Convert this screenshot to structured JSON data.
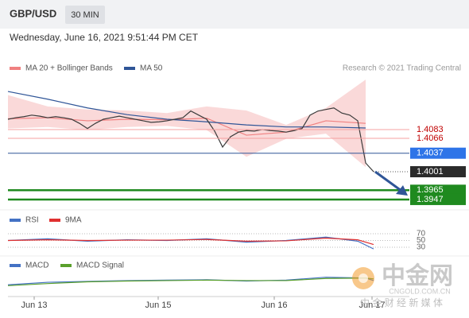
{
  "header": {
    "symbol": "GBP/USD",
    "interval": "30 MIN",
    "datetime": "Wednesday, June 16, 2021 9:51:44 PM CET"
  },
  "watermark": {
    "brand": "中金网",
    "domain": "CNGOLD.COM.CN",
    "tagline": "中 金 财 经 新 媒 体"
  },
  "chart_data": [
    {
      "type": "line",
      "credit": "Research © 2021 Trading Central",
      "xlim": [
        0,
        50
      ],
      "ylim": [
        1.3933,
        1.4188
      ],
      "xticks": [
        {
          "value": 3.3,
          "label": "Jun 13"
        },
        {
          "value": 18.9,
          "label": "Jun 15"
        },
        {
          "value": 33.5,
          "label": "Jun 16"
        },
        {
          "value": 45.8,
          "label": "Jun 17"
        }
      ],
      "series": [
        {
          "name": "MA 20 + Bollinger Bands",
          "color": "#f08080",
          "x": [
            0,
            5,
            10,
            15,
            20,
            25,
            30,
            35,
            40,
            45
          ],
          "values": [
            1.4104,
            1.4106,
            1.41,
            1.4103,
            1.4102,
            1.4105,
            1.4072,
            1.4078,
            1.41,
            1.4095
          ],
          "upper": [
            1.415,
            1.4128,
            1.4122,
            1.412,
            1.4115,
            1.4128,
            1.412,
            1.4092,
            1.4125,
            1.418
          ],
          "lower": [
            1.4085,
            1.4088,
            1.4082,
            1.4088,
            1.409,
            1.4082,
            1.403,
            1.4065,
            1.4075,
            1.401
          ]
        },
        {
          "name": "MA 50",
          "color": "#2f5597",
          "x": [
            0,
            5,
            10,
            15,
            20,
            25,
            30,
            35,
            40,
            45
          ],
          "values": [
            1.4157,
            1.4142,
            1.4125,
            1.4112,
            1.4103,
            1.4098,
            1.4092,
            1.4088,
            1.4088,
            1.4086
          ]
        },
        {
          "color": "#3a3a3a",
          "x": [
            0,
            1,
            2,
            3,
            4,
            5,
            6,
            7,
            8,
            9,
            10,
            11,
            12,
            13,
            14,
            15,
            16,
            17,
            18,
            19,
            20,
            21,
            22,
            23,
            24,
            25,
            26,
            27,
            28,
            29,
            30,
            31,
            32,
            33,
            34,
            35,
            36,
            37,
            38,
            39,
            40,
            41,
            42,
            43,
            44,
            45,
            46
          ],
          "values": [
            1.4103,
            1.4106,
            1.4108,
            1.4111,
            1.4109,
            1.4106,
            1.4108,
            1.4106,
            1.4103,
            1.4095,
            1.4085,
            1.4095,
            1.4103,
            1.4106,
            1.4109,
            1.4106,
            1.4103,
            1.41,
            1.4097,
            1.4098,
            1.41,
            1.4103,
            1.4106,
            1.4119,
            1.4111,
            1.4103,
            1.408,
            1.4049,
            1.4069,
            1.4078,
            1.4081,
            1.408,
            1.4083,
            1.4081,
            1.408,
            1.4078,
            1.4081,
            1.4085,
            1.4111,
            1.4119,
            1.4122,
            1.4125,
            1.4115,
            1.4111,
            1.41,
            1.4018,
            1.4001
          ]
        }
      ],
      "levels": [
        {
          "value": 1.4083,
          "label": "1.4083",
          "color": "#f4a0a0",
          "text_color": "#c00000",
          "box": false
        },
        {
          "value": 1.4066,
          "label": "1.4066",
          "color": "#f4a0a0",
          "text_color": "#c00000",
          "box": false
        },
        {
          "value": 1.4037,
          "label": "1.4037",
          "color": "#2f5597",
          "box_color": "#2e74e8",
          "box": true
        },
        {
          "value": 1.4001,
          "label": "1.4001",
          "color": "#555555",
          "box_color": "#2b2b2b",
          "box": true,
          "dotted": true
        },
        {
          "value": 1.3965,
          "label": "1.3965",
          "color": "#1f8a1f",
          "box_color": "#1f8a1f",
          "box": true
        },
        {
          "value": 1.3947,
          "label": "1.3947",
          "color": "#1f8a1f",
          "box_color": "#1f8a1f",
          "box": true
        }
      ]
    },
    {
      "type": "line",
      "ylim": [
        20,
        80
      ],
      "yticks": [
        30,
        50,
        70
      ],
      "series": [
        {
          "name": "RSI",
          "color": "#4472c4",
          "x": [
            0,
            5,
            10,
            15,
            20,
            25,
            30,
            35,
            40,
            44,
            46
          ],
          "values": [
            50,
            55,
            48,
            52,
            50,
            55,
            45,
            50,
            60,
            48,
            25
          ]
        },
        {
          "name": "9MA",
          "color": "#e03030",
          "x": [
            0,
            5,
            10,
            15,
            20,
            25,
            30,
            35,
            40,
            44,
            46
          ],
          "values": [
            50,
            52,
            50,
            51,
            51,
            53,
            48,
            49,
            57,
            52,
            38
          ]
        }
      ]
    },
    {
      "type": "line",
      "ylim": [
        -0.003,
        0.003
      ],
      "series": [
        {
          "name": "MACD",
          "color": "#4472c4",
          "x": [
            0,
            5,
            10,
            15,
            20,
            25,
            30,
            35,
            40,
            45,
            46
          ],
          "values": [
            -0.0008,
            -0.0002,
            0,
            0.0002,
            0.0003,
            0.0004,
            0.0001,
            0.0003,
            0.001,
            0.0008,
            0.0002
          ]
        },
        {
          "name": "MACD Signal",
          "color": "#5aa02c",
          "x": [
            0,
            5,
            10,
            15,
            20,
            25,
            30,
            35,
            40,
            45,
            46
          ],
          "values": [
            -0.001,
            -0.0005,
            -0.0001,
            0.0001,
            0.0002,
            0.0003,
            0.0002,
            0.0002,
            0.0007,
            0.0008,
            0.0006
          ]
        }
      ]
    }
  ]
}
